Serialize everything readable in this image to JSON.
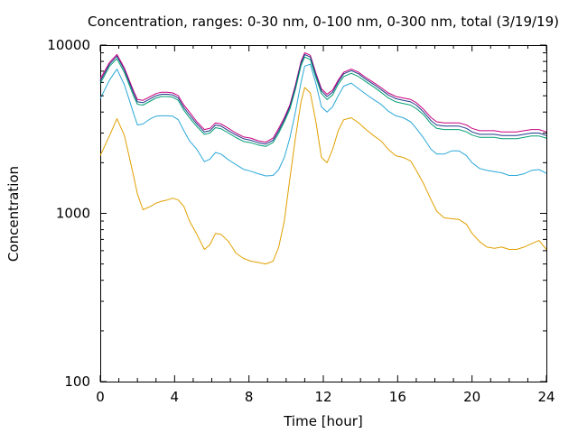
{
  "chart_data": {
    "type": "line",
    "title": "Concentration, ranges: 0-30 nm, 0-100 nm, 0-300 nm, total (3/19/19)",
    "xlabel": "Time [hour]",
    "ylabel": "Concentration",
    "xlim": [
      0,
      24
    ],
    "ylim": [
      100,
      10000
    ],
    "yscale": "log",
    "grid": false,
    "legend": "none",
    "x_ticks": [
      0,
      4,
      8,
      12,
      16,
      20,
      24
    ],
    "x_tick_labels": [
      "0",
      "4",
      "8",
      "12",
      "16",
      "20",
      "24"
    ],
    "y_ticks": [
      100,
      1000,
      10000
    ],
    "y_tick_labels": [
      "100",
      "1000",
      "10000"
    ],
    "x": [
      0,
      0.5,
      0.9,
      1.3,
      1.8,
      2.0,
      2.3,
      2.7,
      3.0,
      3.3,
      3.6,
      3.9,
      4.2,
      4.5,
      4.8,
      5.2,
      5.6,
      5.9,
      6.2,
      6.5,
      6.9,
      7.3,
      7.7,
      8.1,
      8.5,
      8.9,
      9.3,
      9.6,
      9.9,
      10.2,
      10.5,
      10.8,
      11.0,
      11.3,
      11.6,
      11.9,
      12.2,
      12.5,
      12.8,
      13.1,
      13.5,
      13.9,
      14.3,
      14.7,
      15.1,
      15.5,
      15.9,
      16.3,
      16.7,
      17.0,
      17.4,
      17.8,
      18.1,
      18.5,
      18.9,
      19.3,
      19.7,
      20.0,
      20.4,
      20.8,
      21.2,
      21.6,
      22.0,
      22.4,
      22.8,
      23.2,
      23.6,
      24.0
    ],
    "series": [
      {
        "color": "#c8007d",
        "values": [
          6300,
          7900,
          8800,
          7300,
          5300,
          4750,
          4700,
          4950,
          5150,
          5250,
          5250,
          5200,
          5000,
          4400,
          4000,
          3500,
          3150,
          3200,
          3450,
          3400,
          3200,
          3000,
          2850,
          2800,
          2700,
          2650,
          2800,
          3200,
          3700,
          4400,
          5800,
          8000,
          9000,
          8700,
          6800,
          5500,
          5100,
          5400,
          6200,
          6900,
          7200,
          6900,
          6400,
          6000,
          5600,
          5200,
          4950,
          4850,
          4750,
          4550,
          4150,
          3700,
          3500,
          3450,
          3450,
          3450,
          3350,
          3200,
          3100,
          3100,
          3100,
          3050,
          3050,
          3050,
          3100,
          3150,
          3150,
          3050
        ]
      },
      {
        "color": "#1f3a8a",
        "values": [
          6100,
          7700,
          8600,
          7100,
          5150,
          4600,
          4550,
          4800,
          5000,
          5100,
          5100,
          5050,
          4850,
          4250,
          3850,
          3400,
          3050,
          3100,
          3350,
          3300,
          3100,
          2920,
          2780,
          2720,
          2630,
          2580,
          2720,
          3100,
          3600,
          4300,
          5650,
          7800,
          8800,
          8500,
          6650,
          5350,
          4950,
          5250,
          6050,
          6750,
          7050,
          6750,
          6250,
          5850,
          5450,
          5050,
          4800,
          4700,
          4600,
          4400,
          4000,
          3550,
          3350,
          3300,
          3300,
          3300,
          3200,
          3050,
          2950,
          2950,
          2950,
          2900,
          2900,
          2900,
          2950,
          3000,
          3000,
          2900
        ]
      },
      {
        "color": "#009e73",
        "values": [
          5900,
          7500,
          8300,
          6850,
          4950,
          4450,
          4400,
          4650,
          4850,
          4950,
          4950,
          4900,
          4700,
          4100,
          3700,
          3280,
          2950,
          3000,
          3230,
          3180,
          3000,
          2820,
          2680,
          2630,
          2550,
          2500,
          2640,
          3000,
          3500,
          4150,
          5450,
          7550,
          8500,
          8200,
          6400,
          5150,
          4750,
          5050,
          5850,
          6500,
          6800,
          6500,
          6050,
          5650,
          5250,
          4850,
          4600,
          4500,
          4400,
          4200,
          3850,
          3400,
          3200,
          3150,
          3150,
          3150,
          3050,
          2920,
          2830,
          2830,
          2830,
          2780,
          2780,
          2780,
          2830,
          2880,
          2880,
          2800
        ]
      },
      {
        "color": "#2aa8d8",
        "values": [
          4800,
          6200,
          7200,
          5800,
          3900,
          3350,
          3400,
          3650,
          3780,
          3800,
          3800,
          3780,
          3600,
          3100,
          2700,
          2400,
          2030,
          2100,
          2300,
          2250,
          2080,
          1950,
          1830,
          1780,
          1720,
          1670,
          1680,
          1820,
          2150,
          2800,
          4000,
          6000,
          7500,
          7700,
          5900,
          4300,
          4000,
          4300,
          5000,
          5700,
          5950,
          5500,
          5100,
          4750,
          4450,
          4050,
          3800,
          3700,
          3500,
          3200,
          2800,
          2400,
          2250,
          2250,
          2350,
          2350,
          2200,
          2000,
          1850,
          1800,
          1770,
          1740,
          1680,
          1680,
          1720,
          1800,
          1820,
          1730
        ]
      },
      {
        "color": "#e0a000",
        "values": [
          2200,
          2900,
          3650,
          2900,
          1650,
          1300,
          1050,
          1100,
          1150,
          1180,
          1200,
          1230,
          1200,
          1100,
          900,
          750,
          610,
          650,
          760,
          750,
          680,
          580,
          540,
          520,
          510,
          500,
          520,
          630,
          900,
          1600,
          2800,
          4600,
          5600,
          5200,
          3500,
          2150,
          2000,
          2400,
          3100,
          3600,
          3700,
          3450,
          3150,
          2900,
          2700,
          2400,
          2200,
          2150,
          2050,
          1800,
          1500,
          1200,
          1030,
          940,
          930,
          920,
          860,
          760,
          680,
          630,
          620,
          630,
          610,
          610,
          630,
          660,
          690,
          610
        ]
      }
    ]
  }
}
